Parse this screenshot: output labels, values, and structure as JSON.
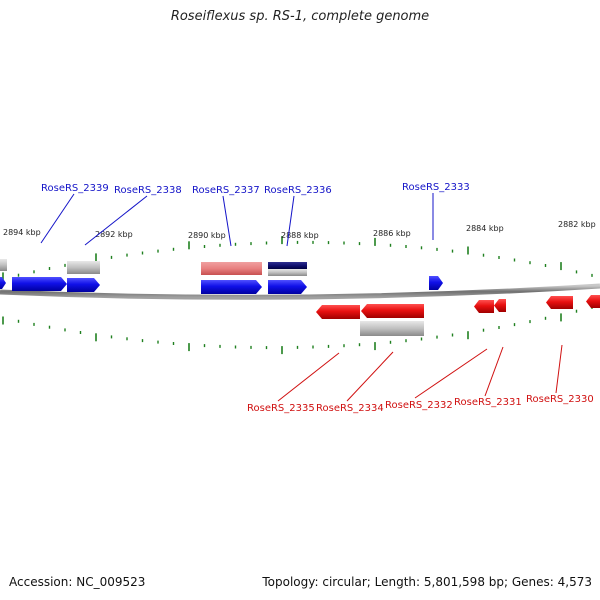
{
  "title": "Roseiflexus sp. RS-1, complete genome",
  "footer": {
    "accession": "Accession: NC_009523",
    "summary": "Topology: circular; Length: 5,801,598 bp; Genes: 4,573"
  },
  "colors": {
    "forward_gene": "#1010e8",
    "reverse_gene": "#e81010",
    "rna_gene": "#b0b0b0",
    "pseudo_gene": "#e88080",
    "dark_gene": "#101070",
    "tick": "#208020",
    "backbone": "#808080",
    "forward_label": "#1414c8",
    "reverse_label": "#d01010"
  },
  "scale_labels": [
    "2894 kbp",
    "2892 kbp",
    "2890 kbp",
    "2888 kbp",
    "2886 kbp",
    "2884 kbp",
    "2882 kbp"
  ],
  "forward_labels": [
    "RoseRS_2339",
    "RoseRS_2338",
    "RoseRS_2337",
    "RoseRS_2336",
    "RoseRS_2333"
  ],
  "reverse_labels": [
    "RoseRS_2335",
    "RoseRS_2334",
    "RoseRS_2332",
    "RoseRS_2331",
    "RoseRS_2330"
  ]
}
